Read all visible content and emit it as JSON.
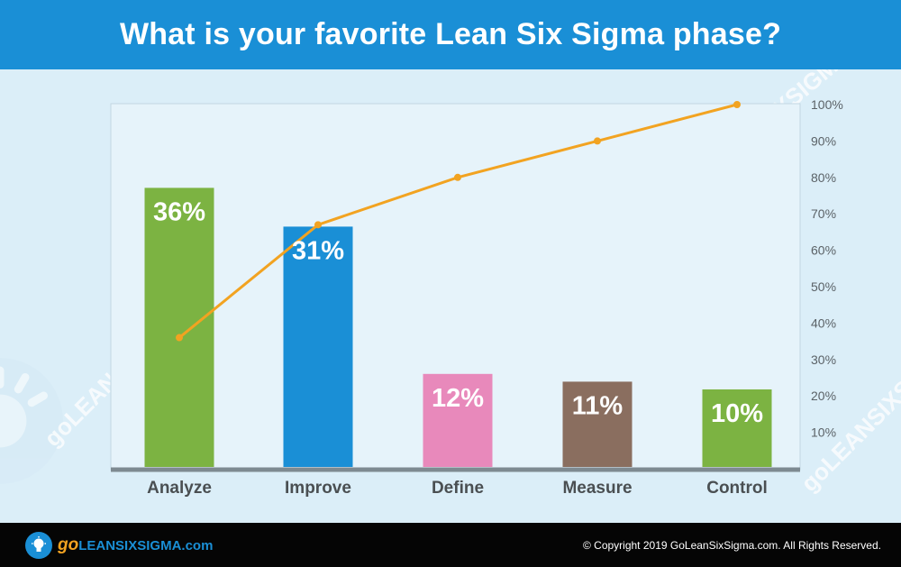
{
  "header": {
    "title": "What is your favorite Lean Six Sigma phase?"
  },
  "chart_data": {
    "type": "bar",
    "categories": [
      "Analyze",
      "Improve",
      "Define",
      "Measure",
      "Control"
    ],
    "values": [
      36,
      31,
      12,
      11,
      10
    ],
    "value_labels": [
      "36%",
      "31%",
      "12%",
      "11%",
      "10%"
    ],
    "bar_colors": [
      "#7cb342",
      "#1a8fd6",
      "#e889bb",
      "#8a6e5f",
      "#7cb342"
    ],
    "line_series": {
      "type": "line",
      "values": [
        36,
        67,
        80,
        90,
        100
      ],
      "color": "#f2a321"
    },
    "right_axis": {
      "ticks": [
        "10%",
        "20%",
        "30%",
        "40%",
        "50%",
        "60%",
        "70%",
        "80%",
        "90%",
        "100%"
      ],
      "ylim": [
        0,
        100
      ]
    },
    "title": "What is your favorite Lean Six Sigma phase?",
    "xlabel": "",
    "ylabel": "",
    "grid": false
  },
  "colors": {
    "header_bg": "#1a8fd6",
    "footer_bg": "#050505",
    "plot_bg": "#e6f3fa",
    "accent": "#f2a321"
  },
  "footer": {
    "logo_prefix": "go",
    "logo_text": "LEANSIXSIGMA.com",
    "copyright": "© Copyright 2019 GoLeanSixSigma.com. All Rights Reserved."
  },
  "watermark": {
    "text": "goLEANSIXSIGMA.com",
    "icon": "lightbulb-icon"
  }
}
